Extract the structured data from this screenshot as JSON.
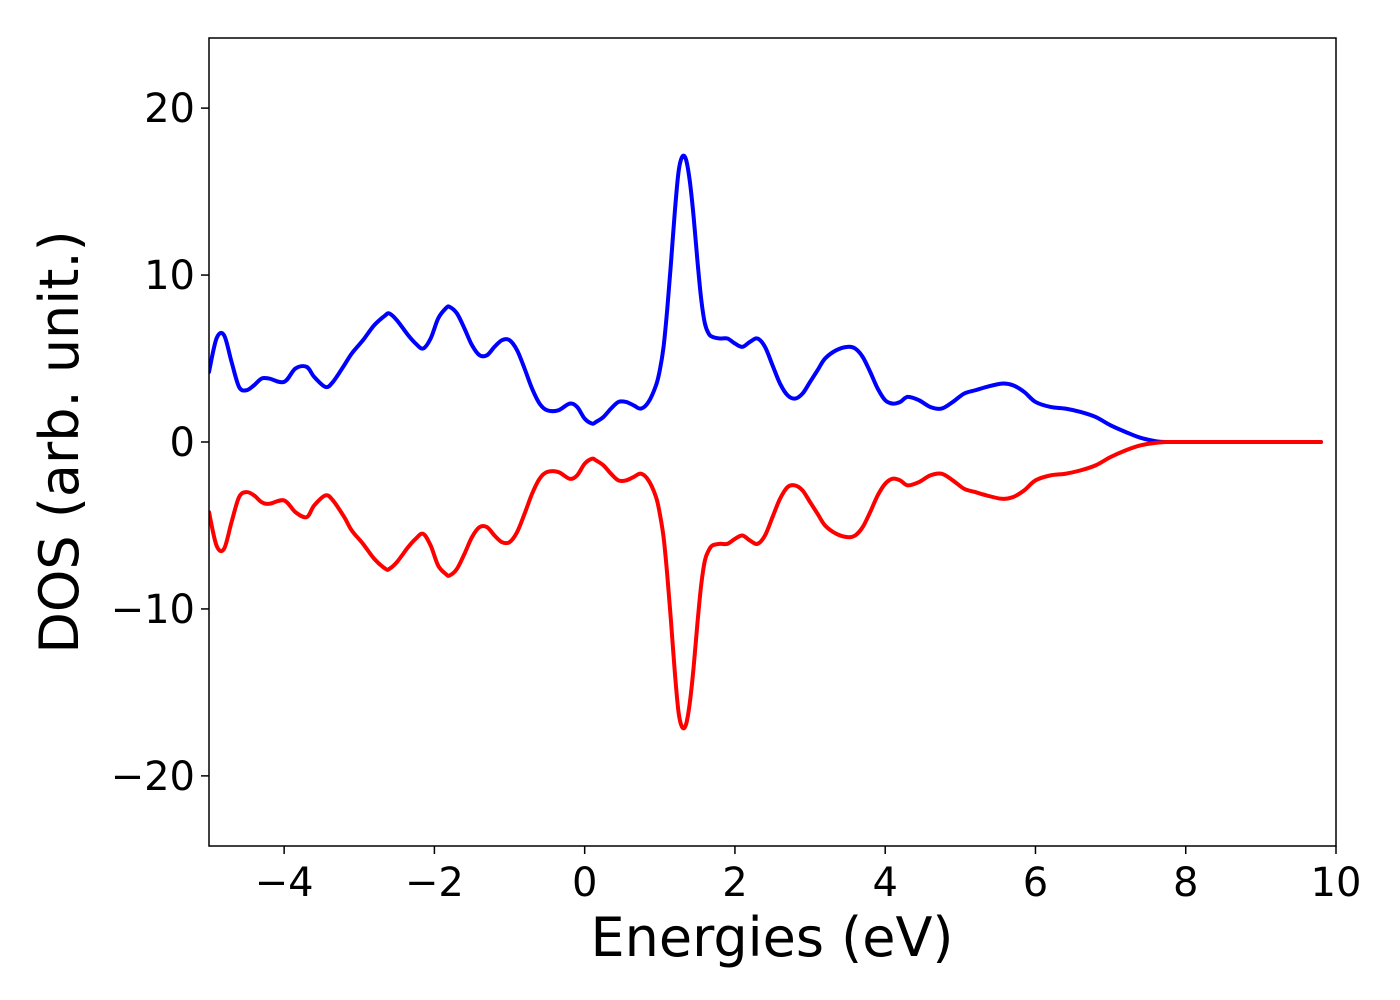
{
  "chart_data": {
    "type": "line",
    "title": "",
    "xlabel": "Energies (eV)",
    "ylabel": "DOS (arb. unit.)",
    "xlim": [
      -5,
      10
    ],
    "ylim": [
      -24.2,
      24.2
    ],
    "xticks": [
      -4,
      -2,
      0,
      2,
      4,
      6,
      8,
      10
    ],
    "xtick_labels": [
      "−4",
      "−2",
      "0",
      "2",
      "4",
      "6",
      "8",
      "10"
    ],
    "yticks": [
      -20,
      -10,
      0,
      10,
      20
    ],
    "ytick_labels": [
      "−20",
      "−10",
      "0",
      "10",
      "20"
    ],
    "grid": false,
    "legend": "none",
    "series": [
      {
        "color": "#0000ff",
        "x": [
          -5.0,
          -4.9,
          -4.8,
          -4.7,
          -4.6,
          -4.5,
          -4.4,
          -4.3,
          -4.2,
          -4.0,
          -3.85,
          -3.7,
          -3.6,
          -3.45,
          -3.35,
          -3.2,
          -3.1,
          -2.95,
          -2.8,
          -2.65,
          -2.6,
          -2.5,
          -2.35,
          -2.25,
          -2.15,
          -2.05,
          -1.95,
          -1.85,
          -1.8,
          -1.7,
          -1.6,
          -1.5,
          -1.4,
          -1.3,
          -1.2,
          -1.1,
          -1.0,
          -0.9,
          -0.8,
          -0.7,
          -0.6,
          -0.5,
          -0.35,
          -0.2,
          -0.1,
          0.0,
          0.1,
          0.15,
          0.25,
          0.35,
          0.45,
          0.55,
          0.65,
          0.75,
          0.85,
          0.95,
          1.0,
          1.05,
          1.1,
          1.15,
          1.2,
          1.25,
          1.3,
          1.35,
          1.4,
          1.45,
          1.5,
          1.55,
          1.6,
          1.65,
          1.7,
          1.8,
          1.9,
          2.0,
          2.1,
          2.2,
          2.3,
          2.4,
          2.5,
          2.6,
          2.7,
          2.8,
          2.9,
          3.0,
          3.1,
          3.2,
          3.35,
          3.5,
          3.6,
          3.7,
          3.8,
          3.9,
          4.0,
          4.1,
          4.2,
          4.3,
          4.45,
          4.6,
          4.75,
          4.9,
          5.05,
          5.2,
          5.35,
          5.55,
          5.7,
          5.85,
          6.0,
          6.2,
          6.4,
          6.6,
          6.8,
          7.0,
          7.2,
          7.4,
          7.6,
          7.75,
          7.9,
          8.2,
          9.0,
          9.8
        ],
        "y": [
          4.2,
          6.2,
          6.4,
          4.8,
          3.3,
          3.1,
          3.4,
          3.8,
          3.8,
          3.6,
          4.4,
          4.5,
          3.9,
          3.3,
          3.6,
          4.6,
          5.3,
          6.1,
          7.0,
          7.6,
          7.7,
          7.3,
          6.4,
          5.9,
          5.6,
          6.2,
          7.4,
          8.0,
          8.1,
          7.7,
          6.8,
          5.8,
          5.2,
          5.2,
          5.7,
          6.1,
          6.1,
          5.5,
          4.4,
          3.2,
          2.3,
          1.9,
          1.9,
          2.3,
          2.1,
          1.4,
          1.1,
          1.2,
          1.5,
          2.0,
          2.4,
          2.4,
          2.2,
          2.0,
          2.4,
          3.4,
          4.3,
          5.7,
          8.0,
          10.8,
          13.8,
          16.2,
          17.1,
          16.9,
          15.6,
          13.5,
          10.9,
          8.6,
          7.1,
          6.5,
          6.3,
          6.2,
          6.2,
          5.9,
          5.7,
          6.0,
          6.2,
          5.7,
          4.6,
          3.5,
          2.8,
          2.6,
          2.9,
          3.6,
          4.3,
          5.0,
          5.5,
          5.7,
          5.6,
          5.1,
          4.2,
          3.2,
          2.5,
          2.3,
          2.4,
          2.7,
          2.5,
          2.1,
          2.0,
          2.4,
          2.9,
          3.1,
          3.3,
          3.5,
          3.4,
          3.0,
          2.4,
          2.1,
          2.0,
          1.8,
          1.5,
          1.0,
          0.6,
          0.25,
          0.05,
          0.0,
          0.0,
          0.0,
          0.0,
          0.0
        ]
      },
      {
        "color": "#ff0000",
        "x": [
          -5.0,
          -4.9,
          -4.8,
          -4.7,
          -4.6,
          -4.5,
          -4.4,
          -4.3,
          -4.2,
          -4.0,
          -3.85,
          -3.7,
          -3.6,
          -3.45,
          -3.35,
          -3.2,
          -3.1,
          -2.95,
          -2.8,
          -2.65,
          -2.6,
          -2.5,
          -2.35,
          -2.25,
          -2.15,
          -2.05,
          -1.95,
          -1.85,
          -1.8,
          -1.7,
          -1.6,
          -1.5,
          -1.4,
          -1.3,
          -1.2,
          -1.1,
          -1.0,
          -0.9,
          -0.8,
          -0.7,
          -0.6,
          -0.5,
          -0.35,
          -0.2,
          -0.1,
          0.0,
          0.1,
          0.15,
          0.25,
          0.35,
          0.45,
          0.55,
          0.65,
          0.75,
          0.85,
          0.95,
          1.0,
          1.05,
          1.1,
          1.15,
          1.2,
          1.25,
          1.3,
          1.35,
          1.4,
          1.45,
          1.5,
          1.55,
          1.6,
          1.65,
          1.7,
          1.8,
          1.9,
          2.0,
          2.1,
          2.2,
          2.3,
          2.4,
          2.5,
          2.6,
          2.7,
          2.8,
          2.9,
          3.0,
          3.1,
          3.2,
          3.35,
          3.5,
          3.6,
          3.7,
          3.8,
          3.9,
          4.0,
          4.1,
          4.2,
          4.3,
          4.45,
          4.6,
          4.75,
          4.9,
          5.05,
          5.2,
          5.35,
          5.55,
          5.7,
          5.85,
          6.0,
          6.2,
          6.4,
          6.6,
          6.8,
          7.0,
          7.2,
          7.4,
          7.6,
          7.75,
          7.9,
          8.2,
          9.0,
          9.8
        ],
        "y": [
          -4.2,
          -6.2,
          -6.4,
          -4.8,
          -3.3,
          -3.0,
          -3.2,
          -3.6,
          -3.7,
          -3.5,
          -4.2,
          -4.5,
          -3.8,
          -3.2,
          -3.5,
          -4.5,
          -5.3,
          -6.1,
          -7.0,
          -7.6,
          -7.6,
          -7.2,
          -6.3,
          -5.8,
          -5.5,
          -6.2,
          -7.4,
          -7.9,
          -8.0,
          -7.6,
          -6.7,
          -5.7,
          -5.1,
          -5.1,
          -5.6,
          -6.0,
          -6.0,
          -5.4,
          -4.3,
          -3.1,
          -2.2,
          -1.8,
          -1.8,
          -2.2,
          -2.0,
          -1.3,
          -1.0,
          -1.1,
          -1.4,
          -1.9,
          -2.3,
          -2.3,
          -2.1,
          -1.9,
          -2.3,
          -3.3,
          -4.3,
          -5.7,
          -8.0,
          -10.8,
          -13.8,
          -16.2,
          -17.1,
          -16.9,
          -15.6,
          -13.5,
          -10.9,
          -8.6,
          -7.1,
          -6.5,
          -6.2,
          -6.1,
          -6.1,
          -5.8,
          -5.6,
          -5.9,
          -6.1,
          -5.6,
          -4.5,
          -3.4,
          -2.7,
          -2.6,
          -2.9,
          -3.6,
          -4.3,
          -5.0,
          -5.5,
          -5.7,
          -5.6,
          -5.1,
          -4.2,
          -3.2,
          -2.5,
          -2.2,
          -2.3,
          -2.6,
          -2.4,
          -2.0,
          -1.9,
          -2.3,
          -2.8,
          -3.0,
          -3.2,
          -3.4,
          -3.3,
          -2.9,
          -2.3,
          -2.0,
          -1.9,
          -1.7,
          -1.4,
          -0.9,
          -0.5,
          -0.2,
          -0.05,
          0.0,
          0.0,
          0.0,
          0.0,
          0.0
        ]
      }
    ]
  }
}
